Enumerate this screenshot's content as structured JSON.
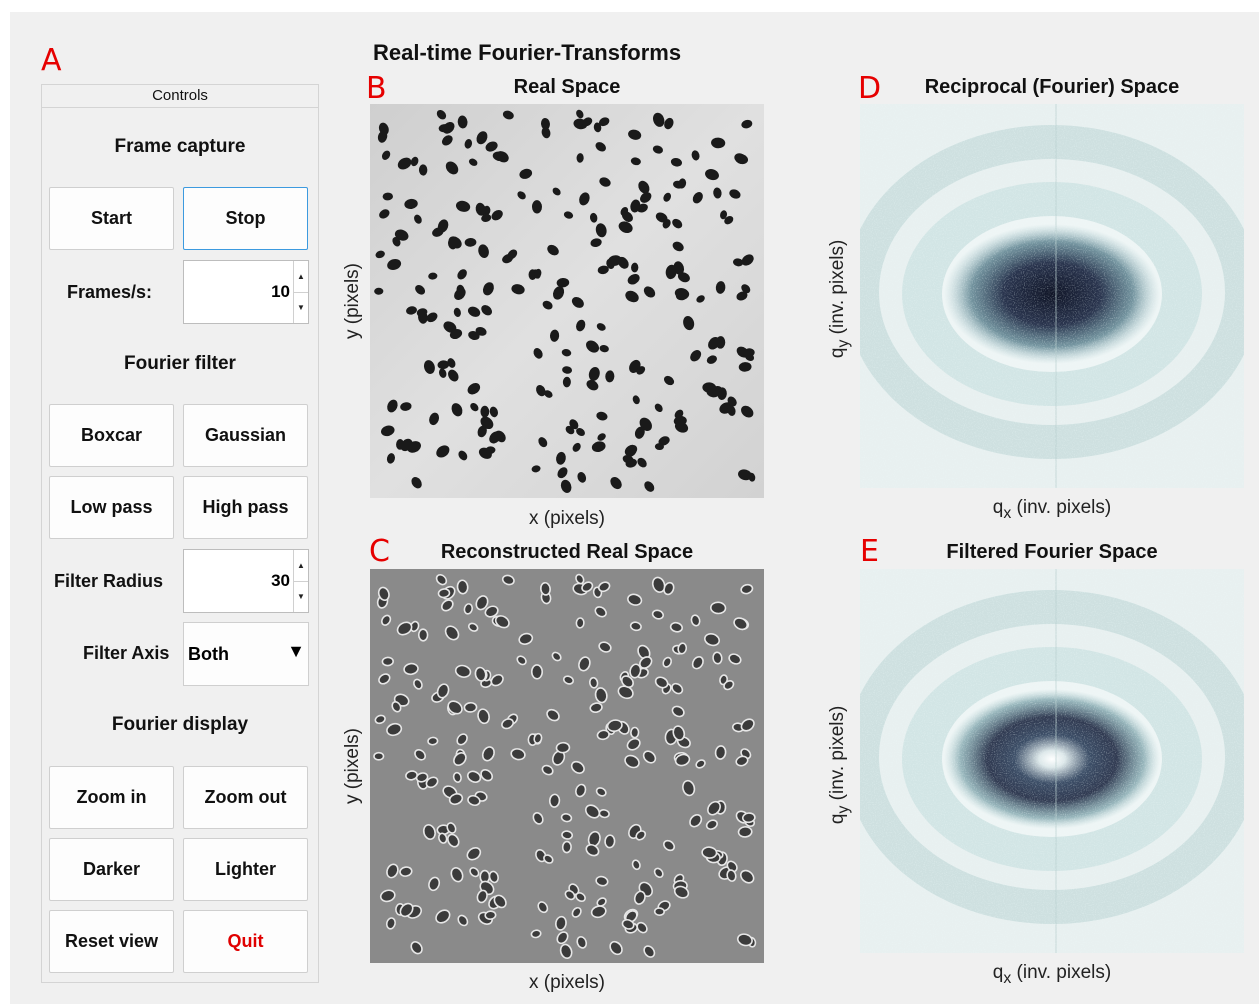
{
  "panel_letters": {
    "a": "A",
    "b": "B",
    "c": "C",
    "d": "D",
    "e": "E"
  },
  "controls": {
    "panel_title": "Controls",
    "frame_capture": {
      "heading": "Frame capture",
      "start_label": "Start",
      "stop_label": "Stop",
      "fps_label": "Frames/s:",
      "fps_value": "10"
    },
    "fourier_filter": {
      "heading": "Fourier filter",
      "boxcar_label": "Boxcar",
      "gaussian_label": "Gaussian",
      "lowpass_label": "Low pass",
      "highpass_label": "High pass",
      "radius_label": "Filter Radius",
      "radius_value": "30",
      "axis_label": "Filter Axis",
      "axis_value": "Both"
    },
    "fourier_display": {
      "heading": "Fourier display",
      "zoom_in_label": "Zoom in",
      "zoom_out_label": "Zoom out",
      "darker_label": "Darker",
      "lighter_label": "Lighter",
      "reset_label": "Reset view",
      "quit_label": "Quit"
    }
  },
  "main_title": "Real-time Fourier-Transforms",
  "plots": {
    "real": {
      "title": "Real Space",
      "xlabel": "x (pixels)",
      "ylabel": "y (pixels)"
    },
    "reconstructed": {
      "title": "Reconstructed Real Space",
      "xlabel": "x (pixels)",
      "ylabel": "y (pixels)"
    },
    "fourier": {
      "title": "Reciprocal (Fourier) Space",
      "xlabel_q": "q",
      "xlabel_sub": "x",
      "xlabel_rest": " (inv. pixels)",
      "ylabel_q": "q",
      "ylabel_sub": "y",
      "ylabel_rest": " (inv. pixels)"
    },
    "filtered": {
      "title": "Filtered Fourier Space",
      "xlabel_q": "q",
      "xlabel_sub": "x",
      "xlabel_rest": " (inv. pixels)",
      "ylabel_q": "q",
      "ylabel_sub": "y",
      "ylabel_rest": " (inv. pixels)"
    }
  },
  "colors": {
    "accent_selected": "#3c9adf",
    "quit_text": "#e00000",
    "panel_letter": "#e60000",
    "particle": "#1a1a1a",
    "fourier_dark": "#16203a"
  }
}
